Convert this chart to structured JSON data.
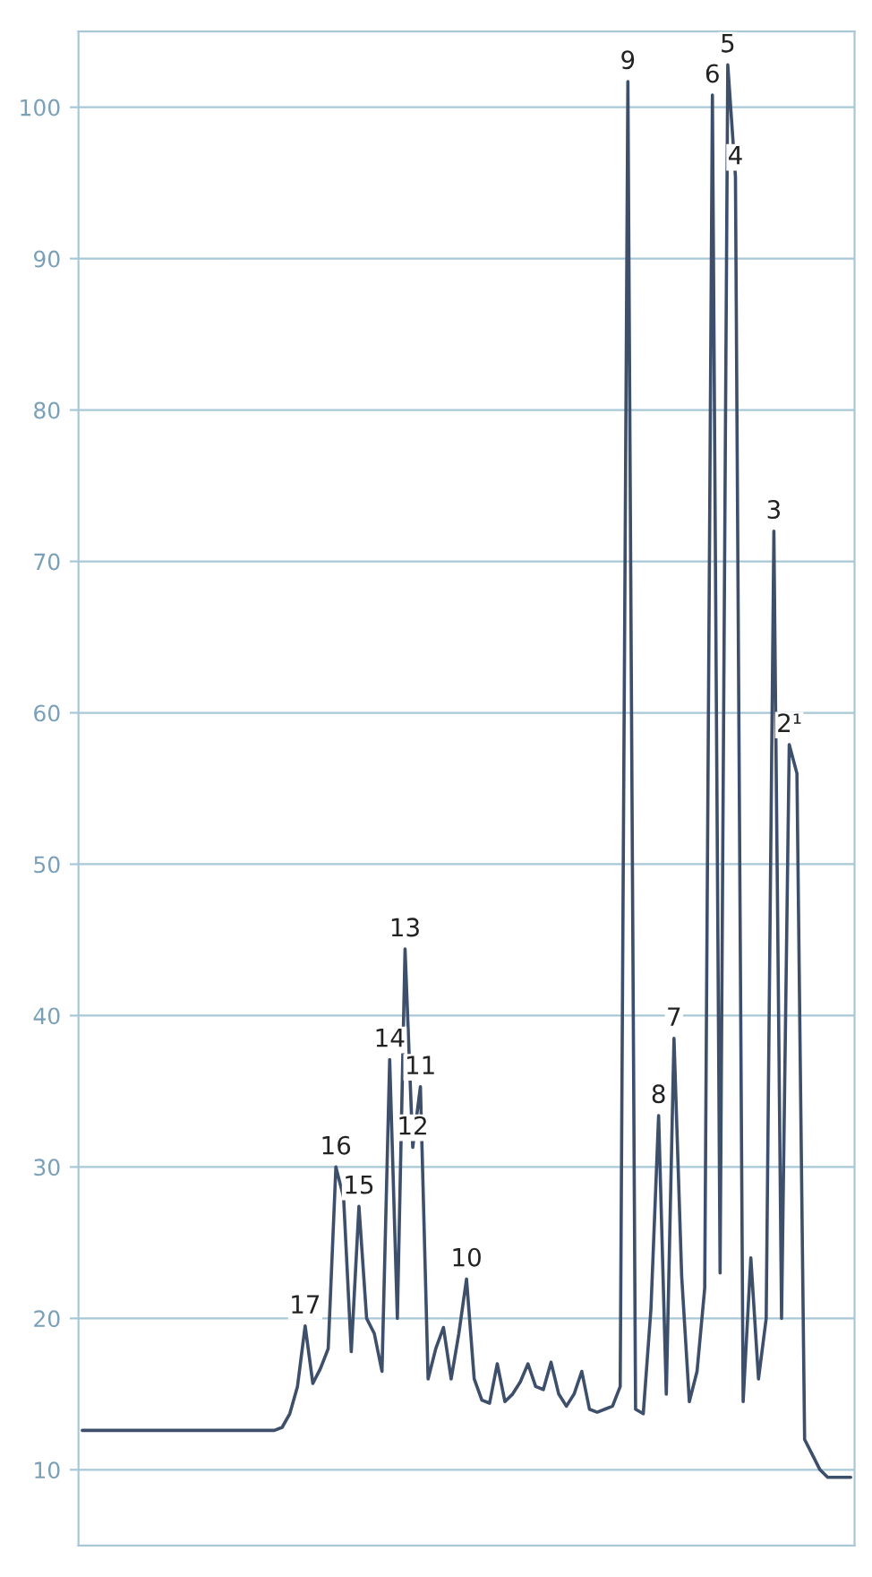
{
  "chart_data": {
    "type": "line",
    "tick_labels": "y",
    "grid": "y",
    "marker": "none",
    "line_style": "solid",
    "ylim": [
      5,
      105
    ],
    "yticks": [
      10,
      20,
      30,
      40,
      50,
      60,
      70,
      80,
      90,
      100
    ],
    "categories": [
      null,
      null,
      null,
      null,
      null,
      null,
      null,
      null,
      null,
      null,
      null,
      null,
      null,
      null,
      null,
      null,
      null,
      null,
      null,
      null,
      null,
      null,
      null,
      null,
      null,
      null,
      null,
      null,
      null,
      null,
      null,
      null,
      null,
      null,
      null,
      null,
      null,
      null,
      null,
      null,
      null,
      null,
      null,
      null,
      null,
      null,
      null,
      null,
      null,
      null,
      null,
      null,
      null,
      null,
      null,
      null,
      null,
      null,
      null,
      null,
      null,
      null,
      null,
      null,
      null,
      null,
      null,
      null,
      null,
      null,
      null,
      null,
      null,
      null,
      null,
      null,
      null,
      null,
      null,
      null,
      null,
      null,
      null,
      null,
      null,
      null,
      null,
      null,
      null,
      null,
      null,
      null,
      null,
      null,
      null,
      null,
      null,
      null,
      null,
      null,
      null
    ],
    "series": [
      {
        "color": "#3d4f6b",
        "values": [
          12.6,
          12.6,
          12.6,
          12.6,
          12.6,
          12.6,
          12.6,
          12.6,
          12.6,
          12.6,
          12.6,
          12.6,
          12.6,
          12.6,
          12.6,
          12.6,
          12.6,
          12.6,
          12.6,
          12.6,
          12.6,
          12.6,
          12.6,
          12.6,
          12.6,
          12.6,
          12.8,
          13.7,
          15.5,
          19.5,
          15.7,
          16.7,
          18,
          30,
          28,
          17.8,
          27.4,
          20,
          19,
          16.5,
          37.1,
          20,
          44.4,
          31.3,
          35.3,
          16,
          18,
          19.4,
          16,
          19,
          22.6,
          16,
          14.6,
          14.4,
          17,
          14.5,
          15,
          15.8,
          17,
          15.5,
          15.3,
          17.1,
          15,
          14.2,
          15,
          16.5,
          14,
          13.8,
          14,
          14.2,
          15.5,
          101.7,
          14,
          13.7,
          20.6,
          33.4,
          15,
          38.5,
          22.8,
          14.5,
          16.5,
          22,
          100.8,
          23,
          102.8,
          95.4,
          14.5,
          24,
          16,
          20,
          72,
          20,
          57.9,
          56,
          12,
          11,
          10,
          9.5,
          9.5,
          9.5,
          9.5
        ]
      }
    ],
    "annotations": [
      {
        "text": "17",
        "y": 19.5
      },
      {
        "text": "16",
        "y": 30
      },
      {
        "text": "15",
        "y": 27.4
      },
      {
        "text": "14",
        "y": 37.1
      },
      {
        "text": "13",
        "y": 44.4
      },
      {
        "text": "12",
        "y": 31.3
      },
      {
        "text": "11",
        "y": 35.3
      },
      {
        "text": "10",
        "y": 22.6
      },
      {
        "text": "9",
        "y": 101.7
      },
      {
        "text": "8",
        "y": 33.4
      },
      {
        "text": "7",
        "y": 38.5
      },
      {
        "text": "6",
        "y": 100.8
      },
      {
        "text": "5",
        "y": 102.8
      },
      {
        "text": "4",
        "y": 95.4
      },
      {
        "text": "3",
        "y": 72
      },
      {
        "text": "2¹",
        "y": 57.9
      }
    ]
  }
}
